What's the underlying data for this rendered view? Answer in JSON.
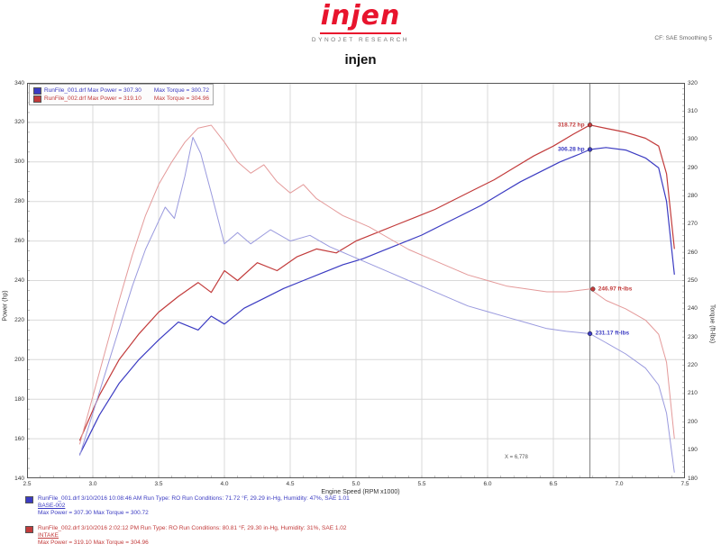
{
  "header": {
    "logo_text": "injen",
    "logo_tagline": "DYNOJET RESEARCH",
    "page_title": "injen",
    "top_right_note": "CF: SAE   Smoothing 5"
  },
  "colors": {
    "run1_power": "#3b3bc2",
    "run1_torque": "#9a9ade",
    "run2_power": "#c23b3b",
    "run2_torque": "#e49a9a",
    "grid": "#d9d9d9",
    "cursor": "#808080",
    "logo_red": "#e8142d"
  },
  "legend_box": {
    "rows": [
      {
        "file": "RunFile_001.drf",
        "max_power": "Max Power = 307.30",
        "max_torque": "Max Torque = 300.72",
        "color": "#3b3bc2"
      },
      {
        "file": "RunFile_002.drf",
        "max_power": "Max Power = 319.10",
        "max_torque": "Max Torque = 304.96",
        "color": "#c23b3b"
      }
    ]
  },
  "footer_runs": [
    {
      "color": "#3b3bc2",
      "line1": "RunFile_001.drf  3/10/2016 10:08:46 AM  Run Type: RO  Run Conditions: 71.72 °F, 29.29 in-Hg, Humidity: 47%, SAE 1.01",
      "line2": "BASE-002",
      "line3": "Max Power = 307.30  Max Torque = 300.72"
    },
    {
      "color": "#c23b3b",
      "line1": "RunFile_002.drf  3/10/2016 2:02:12 PM  Run Type: RO  Run Conditions: 80.81 °F, 29.30 in-Hg, Humidity: 31%, SAE 1.02",
      "line2": "INTAKE",
      "line3": "Max Power = 319.10  Max Torque = 304.96"
    }
  ],
  "chart_data": {
    "type": "line",
    "title": "injen",
    "xlabel": "Engine Speed (RPM x1000)",
    "ylabel_left": "Power (hp)",
    "ylabel_right": "Torque (ft-lbs)",
    "grid": true,
    "legend_position": "top-left",
    "axes": {
      "x": {
        "min": 2.5,
        "max": 7.5,
        "ticks": [
          2.5,
          3.0,
          3.5,
          4.0,
          4.5,
          5.0,
          5.5,
          6.0,
          6.5,
          7.0,
          7.5
        ],
        "minor_step": 0.1
      },
      "power": {
        "min": 140,
        "max": 340,
        "ticks": [
          340,
          320,
          300,
          280,
          260,
          240,
          220,
          200,
          180,
          160,
          140
        ],
        "minor_step": 5
      },
      "torque": {
        "min": 180,
        "max": 320,
        "ticks": [
          320,
          310,
          300,
          290,
          280,
          270,
          260,
          250,
          240,
          230,
          220,
          210,
          200,
          190,
          180
        ],
        "minor_step": 2
      }
    },
    "cursor": {
      "rpm": 6778,
      "label": "X = 6,778"
    },
    "series": [
      {
        "name": "RunFile_002 Power",
        "unit": "hp",
        "axis": "power",
        "color": "#c23b3b",
        "width": 1.2,
        "points": [
          [
            2900,
            159
          ],
          [
            3050,
            182
          ],
          [
            3200,
            200
          ],
          [
            3350,
            213
          ],
          [
            3500,
            224
          ],
          [
            3650,
            232
          ],
          [
            3800,
            239
          ],
          [
            3900,
            234
          ],
          [
            4000,
            245
          ],
          [
            4100,
            240
          ],
          [
            4250,
            249
          ],
          [
            4400,
            245
          ],
          [
            4550,
            252
          ],
          [
            4700,
            256
          ],
          [
            4850,
            254
          ],
          [
            5000,
            260
          ],
          [
            5150,
            264
          ],
          [
            5300,
            268
          ],
          [
            5450,
            272
          ],
          [
            5600,
            276
          ],
          [
            5750,
            281
          ],
          [
            5900,
            286
          ],
          [
            6050,
            291
          ],
          [
            6200,
            297
          ],
          [
            6350,
            303
          ],
          [
            6500,
            308
          ],
          [
            6650,
            314
          ],
          [
            6778,
            318.7
          ],
          [
            6900,
            317
          ],
          [
            7050,
            315
          ],
          [
            7200,
            312
          ],
          [
            7300,
            308
          ],
          [
            7360,
            294
          ],
          [
            7420,
            256
          ]
        ]
      },
      {
        "name": "RunFile_001 Power",
        "unit": "hp",
        "axis": "power",
        "color": "#3b3bc2",
        "width": 1.2,
        "points": [
          [
            2900,
            152
          ],
          [
            3050,
            172
          ],
          [
            3200,
            188
          ],
          [
            3350,
            200
          ],
          [
            3500,
            210
          ],
          [
            3650,
            219
          ],
          [
            3800,
            215
          ],
          [
            3900,
            222
          ],
          [
            4000,
            218
          ],
          [
            4150,
            226
          ],
          [
            4300,
            231
          ],
          [
            4450,
            236
          ],
          [
            4600,
            240
          ],
          [
            4750,
            244
          ],
          [
            4900,
            248
          ],
          [
            5050,
            251
          ],
          [
            5200,
            255
          ],
          [
            5350,
            259
          ],
          [
            5500,
            263
          ],
          [
            5650,
            268
          ],
          [
            5800,
            273
          ],
          [
            5950,
            278
          ],
          [
            6100,
            284
          ],
          [
            6250,
            290
          ],
          [
            6400,
            295
          ],
          [
            6550,
            300
          ],
          [
            6700,
            304
          ],
          [
            6778,
            306.3
          ],
          [
            6900,
            307.3
          ],
          [
            7050,
            306
          ],
          [
            7200,
            302
          ],
          [
            7300,
            297
          ],
          [
            7360,
            280
          ],
          [
            7420,
            243
          ]
        ]
      },
      {
        "name": "RunFile_002 Torque",
        "unit": "ft-lbs",
        "axis": "torque",
        "color": "#e49a9a",
        "width": 1,
        "points": [
          [
            2900,
            192
          ],
          [
            3000,
            209
          ],
          [
            3100,
            226
          ],
          [
            3200,
            243
          ],
          [
            3300,
            259
          ],
          [
            3400,
            273
          ],
          [
            3500,
            284
          ],
          [
            3600,
            292
          ],
          [
            3700,
            299
          ],
          [
            3800,
            304
          ],
          [
            3900,
            305
          ],
          [
            4000,
            299
          ],
          [
            4100,
            292
          ],
          [
            4200,
            288
          ],
          [
            4300,
            291
          ],
          [
            4400,
            285
          ],
          [
            4500,
            281
          ],
          [
            4600,
            284
          ],
          [
            4700,
            279
          ],
          [
            4800,
            276
          ],
          [
            4900,
            273
          ],
          [
            5000,
            271
          ],
          [
            5100,
            269
          ],
          [
            5250,
            265
          ],
          [
            5400,
            261
          ],
          [
            5550,
            258
          ],
          [
            5700,
            255
          ],
          [
            5850,
            252
          ],
          [
            6000,
            250
          ],
          [
            6150,
            248
          ],
          [
            6300,
            247
          ],
          [
            6450,
            246
          ],
          [
            6600,
            246
          ],
          [
            6778,
            247
          ],
          [
            6900,
            243
          ],
          [
            7050,
            240
          ],
          [
            7200,
            236
          ],
          [
            7300,
            231
          ],
          [
            7360,
            221
          ],
          [
            7420,
            194
          ]
        ]
      },
      {
        "name": "RunFile_001 Torque",
        "unit": "ft-lbs",
        "axis": "torque",
        "color": "#9a9ade",
        "width": 1,
        "points": [
          [
            2900,
            188
          ],
          [
            3000,
            203
          ],
          [
            3100,
            218
          ],
          [
            3200,
            233
          ],
          [
            3300,
            248
          ],
          [
            3400,
            261
          ],
          [
            3500,
            271
          ],
          [
            3550,
            276
          ],
          [
            3620,
            272
          ],
          [
            3700,
            287
          ],
          [
            3760,
            300.7
          ],
          [
            3820,
            295
          ],
          [
            3900,
            281
          ],
          [
            4000,
            263
          ],
          [
            4100,
            267
          ],
          [
            4200,
            263
          ],
          [
            4350,
            268
          ],
          [
            4500,
            264
          ],
          [
            4650,
            266
          ],
          [
            4800,
            262
          ],
          [
            4950,
            259
          ],
          [
            5100,
            256
          ],
          [
            5250,
            253
          ],
          [
            5400,
            250
          ],
          [
            5550,
            247
          ],
          [
            5700,
            244
          ],
          [
            5850,
            241
          ],
          [
            6000,
            239
          ],
          [
            6150,
            237
          ],
          [
            6300,
            235
          ],
          [
            6450,
            233
          ],
          [
            6600,
            232
          ],
          [
            6778,
            231.2
          ],
          [
            6900,
            228
          ],
          [
            7050,
            224
          ],
          [
            7200,
            219
          ],
          [
            7300,
            213
          ],
          [
            7360,
            203
          ],
          [
            7420,
            182
          ]
        ]
      }
    ],
    "callouts": [
      {
        "text": "318.72 hp",
        "color": "#c23b3b",
        "rpm": 6778,
        "value": 318.7,
        "axis": "power",
        "side": "left"
      },
      {
        "text": "306.28 hp",
        "color": "#3b3bc2",
        "rpm": 6778,
        "value": 306.3,
        "axis": "power",
        "side": "left"
      },
      {
        "text": "246.97 ft-lbs",
        "color": "#c23b3b",
        "rpm": 6800,
        "value": 247.0,
        "axis": "torque",
        "side": "right"
      },
      {
        "text": "231.17 ft-lbs",
        "color": "#3b3bc2",
        "rpm": 6778,
        "value": 231.2,
        "axis": "torque",
        "side": "right"
      }
    ]
  }
}
